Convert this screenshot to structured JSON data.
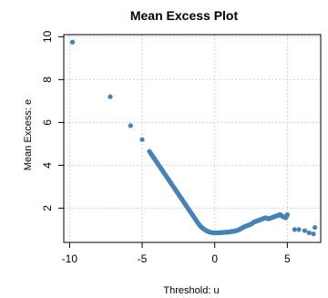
{
  "chart_data": {
    "type": "scatter",
    "title": "Mean Excess Plot",
    "xlabel": "Threshold: u",
    "ylabel": "Mean Excess: e",
    "xlim": [
      -10.4,
      7.3
    ],
    "ylim": [
      0.4,
      10.1
    ],
    "x_ticks": [
      -10,
      -5,
      0,
      5
    ],
    "y_ticks": [
      2,
      4,
      6,
      8,
      10
    ],
    "x_tick_labels": [
      "-10",
      "-5",
      "0",
      "5"
    ],
    "y_tick_labels": [
      "2",
      "4",
      "6",
      "8",
      "10"
    ],
    "grid": true,
    "point_color": "#4682b4",
    "x": [
      -9.8,
      -7.2,
      -5.8,
      -5.0,
      -4.5,
      -4.3,
      -4.1,
      -3.9,
      -3.7,
      -3.5,
      -3.3,
      -3.1,
      -2.9,
      -2.7,
      -2.5,
      -2.3,
      -2.1,
      -1.9,
      -1.7,
      -1.5,
      -1.3,
      -1.1,
      -0.9,
      -0.7,
      -0.5,
      -0.3,
      -0.1,
      0.1,
      0.3,
      0.5,
      0.7,
      0.9,
      1.1,
      1.3,
      1.5,
      1.7,
      1.9,
      2.1,
      2.3,
      2.5,
      2.7,
      2.9,
      3.1,
      3.3,
      3.5,
      3.7,
      3.9,
      4.1,
      4.3,
      4.5,
      4.7,
      4.9,
      5.0,
      5.5,
      5.8,
      6.2,
      6.5,
      6.8,
      6.9
    ],
    "y": [
      9.75,
      7.2,
      5.85,
      5.2,
      4.65,
      4.45,
      4.25,
      4.05,
      3.85,
      3.65,
      3.45,
      3.25,
      3.05,
      2.85,
      2.65,
      2.45,
      2.25,
      2.05,
      1.85,
      1.65,
      1.45,
      1.25,
      1.1,
      1.0,
      0.92,
      0.87,
      0.85,
      0.85,
      0.85,
      0.86,
      0.87,
      0.88,
      0.9,
      0.92,
      0.95,
      1.0,
      1.08,
      1.15,
      1.2,
      1.25,
      1.35,
      1.4,
      1.45,
      1.5,
      1.55,
      1.5,
      1.55,
      1.6,
      1.65,
      1.7,
      1.6,
      1.55,
      1.7,
      1.0,
      1.0,
      0.95,
      0.85,
      0.8,
      1.1
    ]
  }
}
